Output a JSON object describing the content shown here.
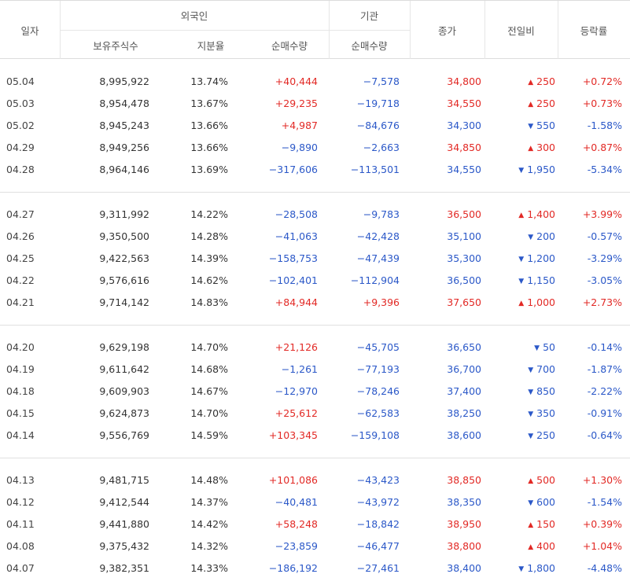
{
  "header": {
    "date": "일자",
    "foreign": "외국인",
    "institution": "기관",
    "holdings": "보유주식수",
    "ratio": "지분율",
    "net_foreign": "순매수량",
    "net_inst": "순매수량",
    "close": "종가",
    "change": "전일비",
    "rate": "등락률"
  },
  "groups": [
    [
      {
        "date": "05.04",
        "holdings": "8,995,922",
        "ratio": "13.74%",
        "foreign_net": "+40,444",
        "inst_net": "−7,578",
        "close": "34,800",
        "dir": "up",
        "change": "250",
        "rate": "+0.72%"
      },
      {
        "date": "05.03",
        "holdings": "8,954,478",
        "ratio": "13.67%",
        "foreign_net": "+29,235",
        "inst_net": "−19,718",
        "close": "34,550",
        "dir": "up",
        "change": "250",
        "rate": "+0.73%"
      },
      {
        "date": "05.02",
        "holdings": "8,945,243",
        "ratio": "13.66%",
        "foreign_net": "+4,987",
        "inst_net": "−84,676",
        "close": "34,300",
        "dir": "down",
        "change": "550",
        "rate": "-1.58%"
      },
      {
        "date": "04.29",
        "holdings": "8,949,256",
        "ratio": "13.66%",
        "foreign_net": "−9,890",
        "inst_net": "−2,663",
        "close": "34,850",
        "dir": "up",
        "change": "300",
        "rate": "+0.87%"
      },
      {
        "date": "04.28",
        "holdings": "8,964,146",
        "ratio": "13.69%",
        "foreign_net": "−317,606",
        "inst_net": "−113,501",
        "close": "34,550",
        "dir": "down",
        "change": "1,950",
        "rate": "-5.34%"
      }
    ],
    [
      {
        "date": "04.27",
        "holdings": "9,311,992",
        "ratio": "14.22%",
        "foreign_net": "−28,508",
        "inst_net": "−9,783",
        "close": "36,500",
        "dir": "up",
        "change": "1,400",
        "rate": "+3.99%"
      },
      {
        "date": "04.26",
        "holdings": "9,350,500",
        "ratio": "14.28%",
        "foreign_net": "−41,063",
        "inst_net": "−42,428",
        "close": "35,100",
        "dir": "down",
        "change": "200",
        "rate": "-0.57%"
      },
      {
        "date": "04.25",
        "holdings": "9,422,563",
        "ratio": "14.39%",
        "foreign_net": "−158,753",
        "inst_net": "−47,439",
        "close": "35,300",
        "dir": "down",
        "change": "1,200",
        "rate": "-3.29%"
      },
      {
        "date": "04.22",
        "holdings": "9,576,616",
        "ratio": "14.62%",
        "foreign_net": "−102,401",
        "inst_net": "−112,904",
        "close": "36,500",
        "dir": "down",
        "change": "1,150",
        "rate": "-3.05%"
      },
      {
        "date": "04.21",
        "holdings": "9,714,142",
        "ratio": "14.83%",
        "foreign_net": "+84,944",
        "inst_net": "+9,396",
        "close": "37,650",
        "dir": "up",
        "change": "1,000",
        "rate": "+2.73%"
      }
    ],
    [
      {
        "date": "04.20",
        "holdings": "9,629,198",
        "ratio": "14.70%",
        "foreign_net": "+21,126",
        "inst_net": "−45,705",
        "close": "36,650",
        "dir": "down",
        "change": "50",
        "rate": "-0.14%"
      },
      {
        "date": "04.19",
        "holdings": "9,611,642",
        "ratio": "14.68%",
        "foreign_net": "−1,261",
        "inst_net": "−77,193",
        "close": "36,700",
        "dir": "down",
        "change": "700",
        "rate": "-1.87%"
      },
      {
        "date": "04.18",
        "holdings": "9,609,903",
        "ratio": "14.67%",
        "foreign_net": "−12,970",
        "inst_net": "−78,246",
        "close": "37,400",
        "dir": "down",
        "change": "850",
        "rate": "-2.22%"
      },
      {
        "date": "04.15",
        "holdings": "9,624,873",
        "ratio": "14.70%",
        "foreign_net": "+25,612",
        "inst_net": "−62,583",
        "close": "38,250",
        "dir": "down",
        "change": "350",
        "rate": "-0.91%"
      },
      {
        "date": "04.14",
        "holdings": "9,556,769",
        "ratio": "14.59%",
        "foreign_net": "+103,345",
        "inst_net": "−159,108",
        "close": "38,600",
        "dir": "down",
        "change": "250",
        "rate": "-0.64%"
      }
    ],
    [
      {
        "date": "04.13",
        "holdings": "9,481,715",
        "ratio": "14.48%",
        "foreign_net": "+101,086",
        "inst_net": "−43,423",
        "close": "38,850",
        "dir": "up",
        "change": "500",
        "rate": "+1.30%"
      },
      {
        "date": "04.12",
        "holdings": "9,412,544",
        "ratio": "14.37%",
        "foreign_net": "−40,481",
        "inst_net": "−43,972",
        "close": "38,350",
        "dir": "down",
        "change": "600",
        "rate": "-1.54%"
      },
      {
        "date": "04.11",
        "holdings": "9,441,880",
        "ratio": "14.42%",
        "foreign_net": "+58,248",
        "inst_net": "−18,842",
        "close": "38,950",
        "dir": "up",
        "change": "150",
        "rate": "+0.39%"
      },
      {
        "date": "04.08",
        "holdings": "9,375,432",
        "ratio": "14.32%",
        "foreign_net": "−23,859",
        "inst_net": "−46,477",
        "close": "38,800",
        "dir": "up",
        "change": "400",
        "rate": "+1.04%"
      },
      {
        "date": "04.07",
        "holdings": "9,382,351",
        "ratio": "14.33%",
        "foreign_net": "−186,192",
        "inst_net": "−27,461",
        "close": "38,400",
        "dir": "down",
        "change": "1,800",
        "rate": "-4.48%"
      }
    ]
  ],
  "colors": {
    "up": "#e22925",
    "down": "#2b58c8"
  },
  "icons": {
    "up": "up-triangle-icon",
    "down": "down-triangle-icon"
  }
}
